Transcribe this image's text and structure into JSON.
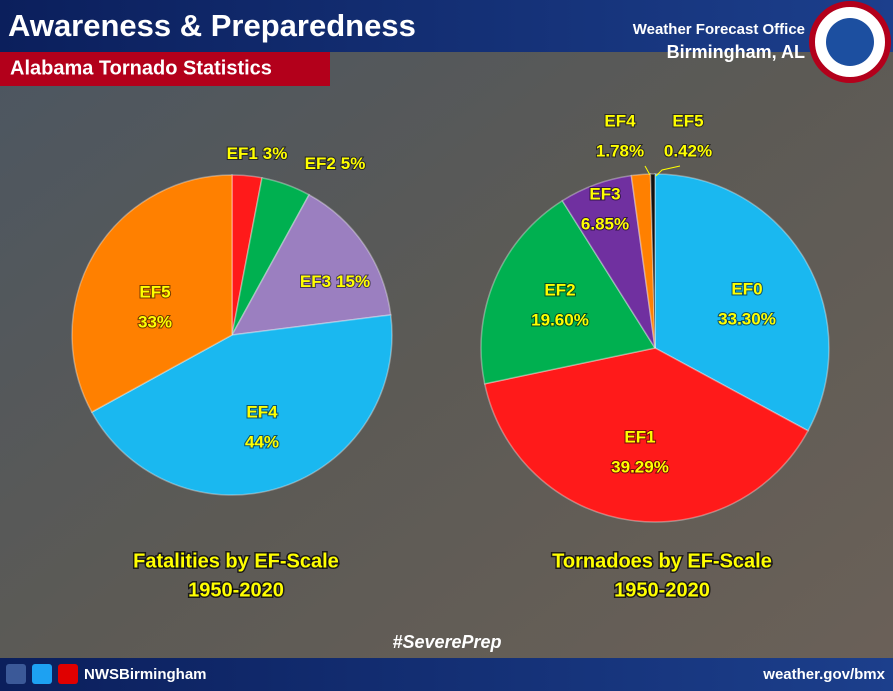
{
  "header": {
    "title": "Awareness & Preparedness",
    "subtitle": "Alabama Tornado Statistics",
    "office": "Weather Forecast Office",
    "location": "Birmingham, AL"
  },
  "hashtag": "#SeverePrep",
  "footer": {
    "handle": "NWSBirmingham",
    "url": "weather.gov/bmx"
  },
  "chart_data": [
    {
      "type": "pie",
      "title": "Fatalities by EF-Scale",
      "subtitle": "1950-2020",
      "categories": [
        "EF1",
        "EF2",
        "EF3",
        "EF4",
        "EF5"
      ],
      "values": [
        3,
        5,
        15,
        44,
        33
      ],
      "value_labels": [
        "3%",
        "5%",
        "15%",
        "44%",
        "33%"
      ],
      "colors": [
        "#ff1a1a",
        "#00b050",
        "#9b7fc0",
        "#1ab8f0",
        "#ff8000"
      ]
    },
    {
      "type": "pie",
      "title": "Tornadoes by EF-Scale",
      "subtitle": "1950-2020",
      "categories": [
        "EF0",
        "EF1",
        "EF2",
        "EF3",
        "EF4",
        "EF5"
      ],
      "values": [
        33.3,
        39.29,
        19.6,
        6.85,
        1.78,
        0.42
      ],
      "value_labels": [
        "33.30%",
        "39.29%",
        "19.60%",
        "6.85%",
        "1.78%",
        "0.42%"
      ],
      "colors": [
        "#1ab8f0",
        "#ff1a1a",
        "#00b050",
        "#7030a0",
        "#ff8000",
        "#111111"
      ]
    }
  ]
}
